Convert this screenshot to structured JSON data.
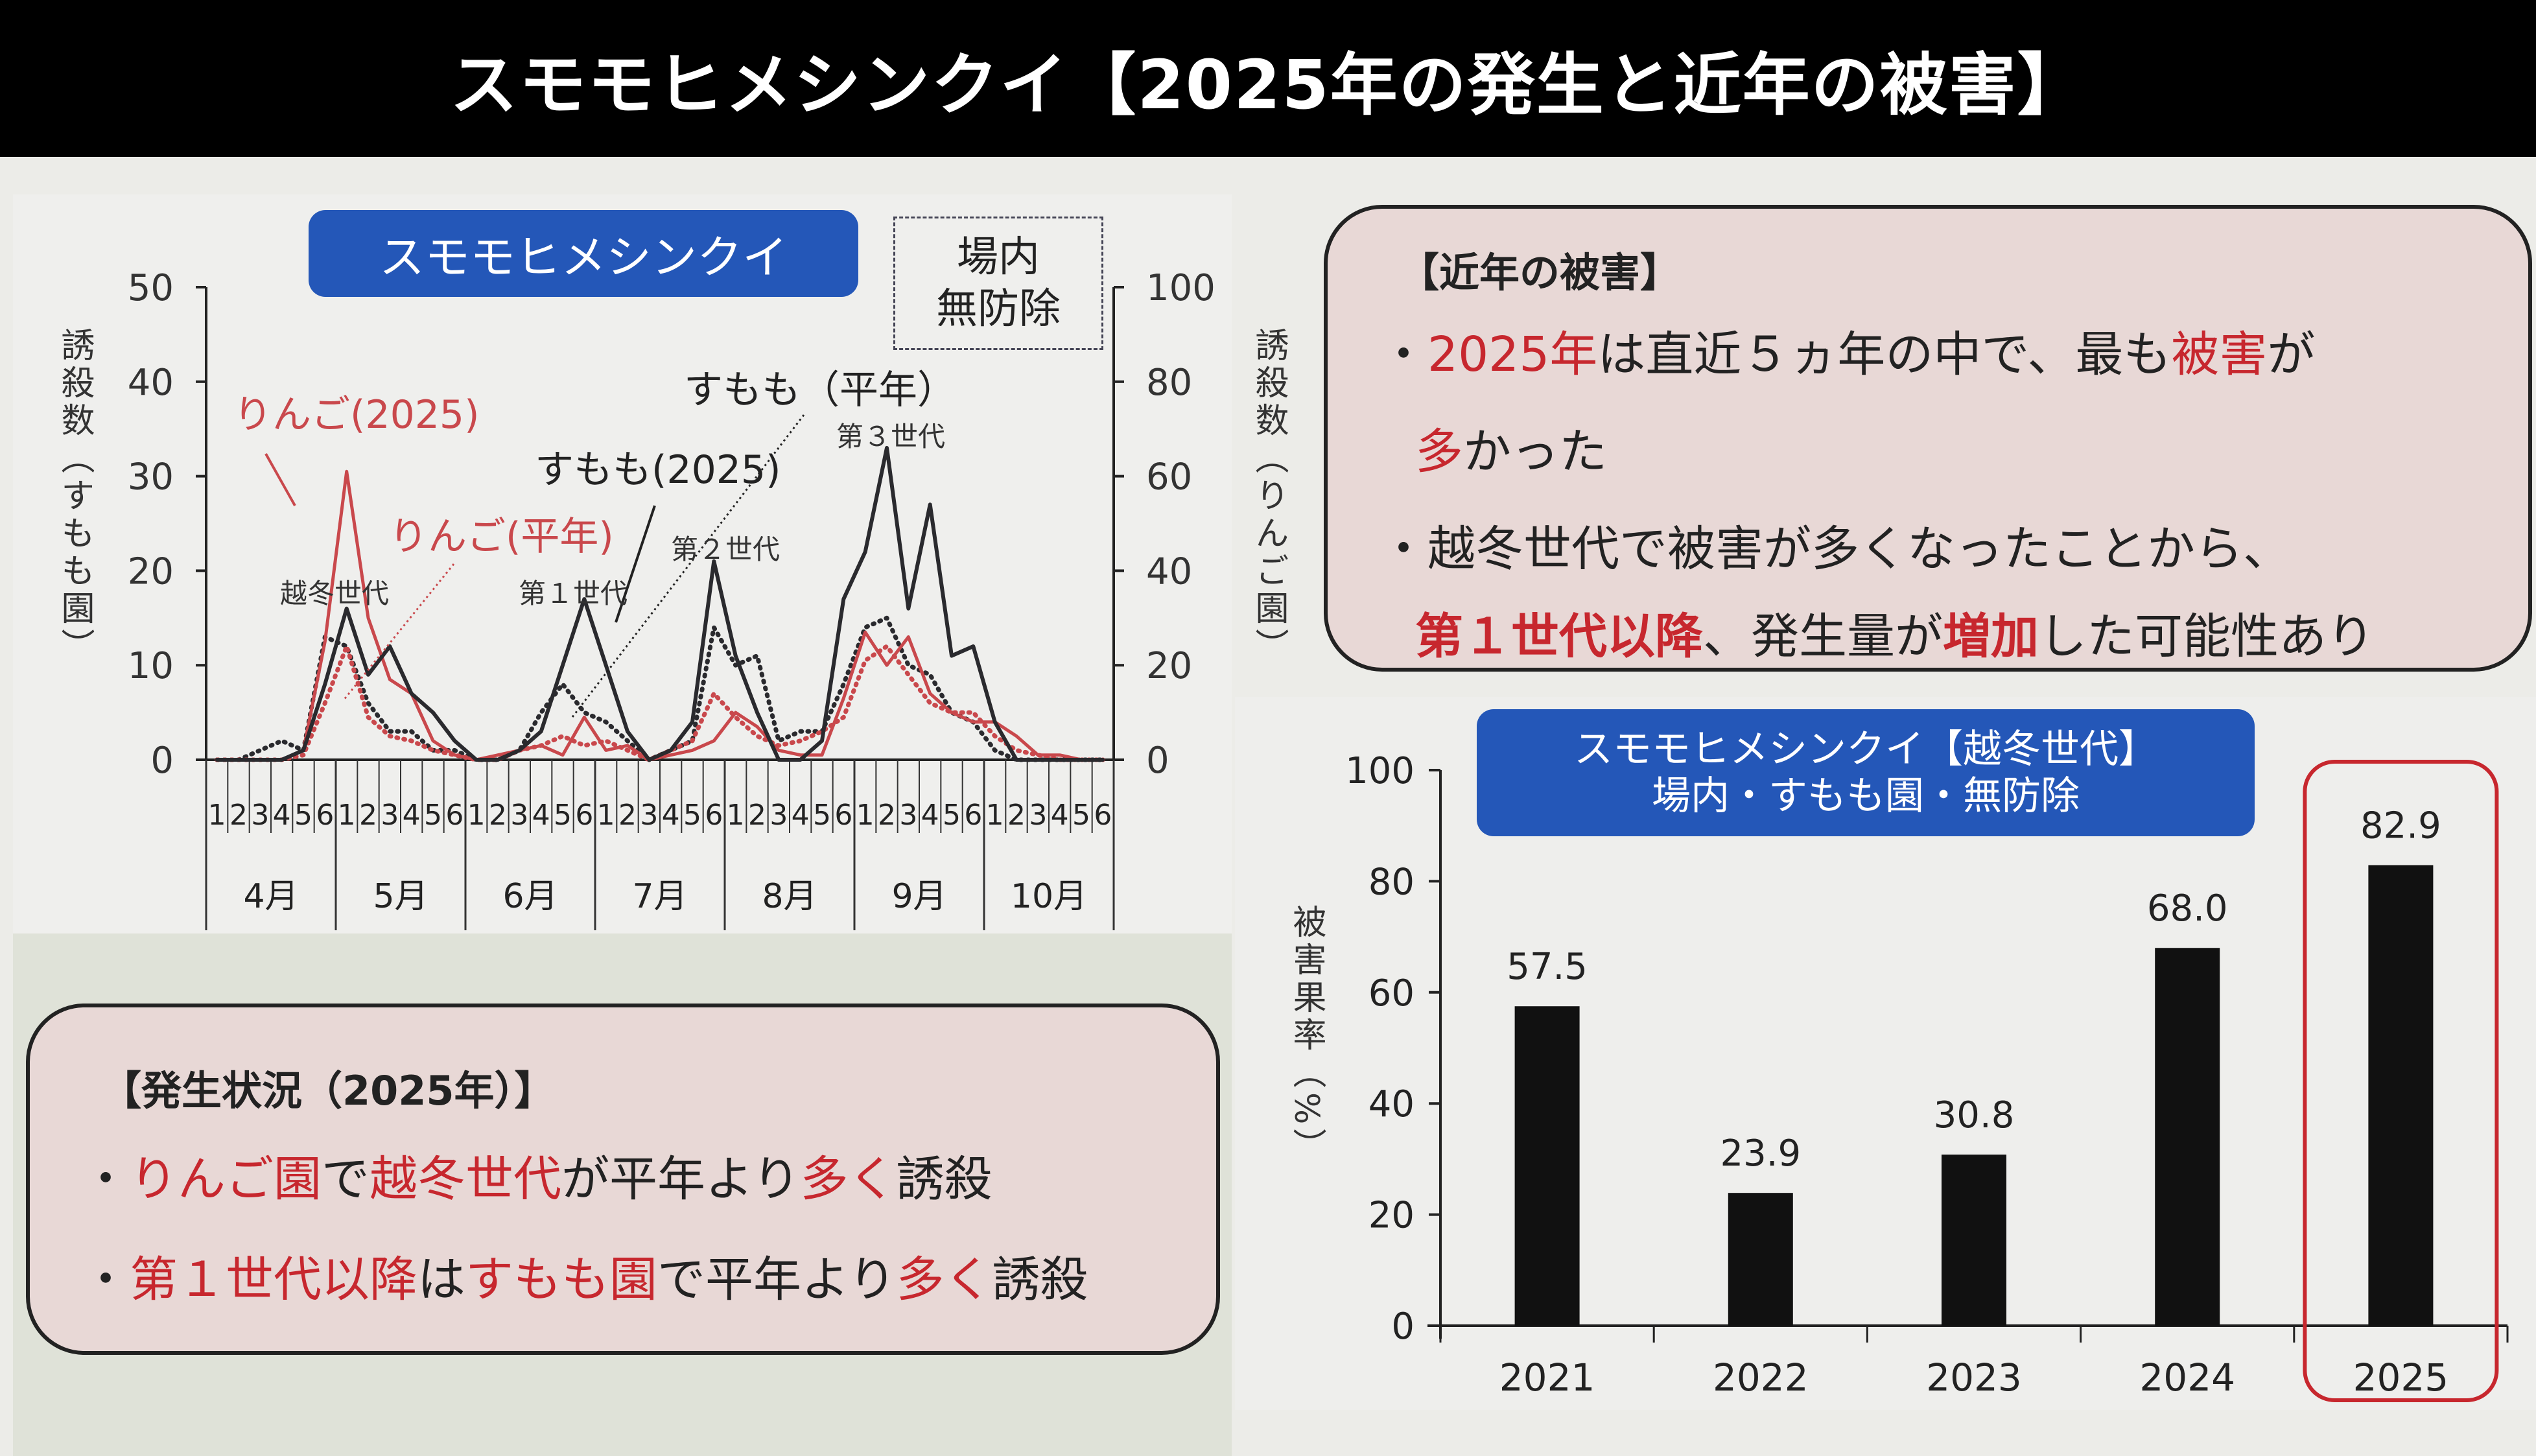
{
  "page": {
    "title": "スモモヒメシンクイ【2025年の発生と近年の被害】"
  },
  "line_chart_panel": {
    "badge": "スモモヒメシンクイ",
    "condition_box": [
      "場内",
      "無防除"
    ],
    "left_axis_label": "誘殺数（すもも園）",
    "right_axis_label": "誘殺数（りんご園）",
    "series_labels": {
      "ringo_2025": "りんご(2025)",
      "ringo_avg": "りんご(平年)",
      "sumomo_2025": "すもも(2025)",
      "sumomo_avg": "すもも（平年）"
    },
    "generation_labels": [
      "越冬世代",
      "第１世代",
      "第２世代",
      "第３世代"
    ]
  },
  "occurrence_box": {
    "heading": "【発生状況（2025年）】",
    "lines": [
      [
        {
          "text": "・",
          "style": "normal"
        },
        {
          "text": "りんご園",
          "style": "red"
        },
        {
          "text": "で",
          "style": "normal"
        },
        {
          "text": "越冬世代",
          "style": "red"
        },
        {
          "text": "が平年より",
          "style": "normal"
        },
        {
          "text": "多く",
          "style": "red"
        },
        {
          "text": "誘殺",
          "style": "normal"
        }
      ],
      [
        {
          "text": "・",
          "style": "normal"
        },
        {
          "text": "第１世代以降",
          "style": "red"
        },
        {
          "text": "は",
          "style": "normal"
        },
        {
          "text": "すもも園",
          "style": "red"
        },
        {
          "text": "で平年より",
          "style": "normal"
        },
        {
          "text": "多く",
          "style": "red"
        },
        {
          "text": "誘殺",
          "style": "normal"
        }
      ]
    ]
  },
  "damage_box": {
    "heading": "【近年の被害】",
    "lines": [
      [
        {
          "text": "・",
          "style": "normal"
        },
        {
          "text": "2025年",
          "style": "red"
        },
        {
          "text": "は直近５ヵ年の中で、最も",
          "style": "normal"
        },
        {
          "text": "被害",
          "style": "red"
        },
        {
          "text": "が",
          "style": "normal"
        }
      ],
      [
        {
          "text": "多",
          "style": "red"
        },
        {
          "text": "かった",
          "style": "normal"
        }
      ],
      [
        {
          "text": "・",
          "style": "normal"
        },
        {
          "text": "越冬世代で被害が多くなったことから、",
          "style": "normal"
        }
      ],
      [
        {
          "text": "第１世代以降",
          "style": "redb"
        },
        {
          "text": "、発生量が",
          "style": "normal"
        },
        {
          "text": "増加",
          "style": "redb"
        },
        {
          "text": "した可能性あり",
          "style": "normal"
        }
      ]
    ]
  },
  "bar_chart_panel": {
    "badge_line1": "スモモヒメシンクイ【越冬世代】",
    "badge_line2": "場内・すもも園・無防除",
    "y_axis_label": "被害果率（%）",
    "highlight_year": "2025"
  },
  "colors": {
    "title_bg": "#000000",
    "badge_blue": "#2457b8",
    "accent_red": "#c7272e",
    "note_bg": "#e8d8d6",
    "bar_black": "#111111"
  },
  "chart_data": [
    {
      "type": "line",
      "title": "スモモヒメシンクイ（場内・無防除）",
      "xlabel": "",
      "ylabel": "誘殺数（すもも園）",
      "ylabel_right": "誘殺数（りんご園）",
      "ylim": [
        0,
        50
      ],
      "ylim_right": [
        0,
        100
      ],
      "yticks": [
        0,
        10,
        20,
        30,
        40,
        50
      ],
      "yticks_right": [
        0,
        20,
        40,
        60,
        80,
        100
      ],
      "months": [
        "4月",
        "5月",
        "6月",
        "7月",
        "8月",
        "9月",
        "10月"
      ],
      "periods_per_month": [
        "1",
        "2",
        "3",
        "4",
        "5",
        "6"
      ],
      "x": [
        "4-1",
        "4-2",
        "4-3",
        "4-4",
        "4-5",
        "4-6",
        "5-1",
        "5-2",
        "5-3",
        "5-4",
        "5-5",
        "5-6",
        "6-1",
        "6-2",
        "6-3",
        "6-4",
        "6-5",
        "6-6",
        "7-1",
        "7-2",
        "7-3",
        "7-4",
        "7-5",
        "7-6",
        "8-1",
        "8-2",
        "8-3",
        "8-4",
        "8-5",
        "8-6",
        "9-1",
        "9-2",
        "9-3",
        "9-4",
        "9-5",
        "9-6",
        "10-1",
        "10-2",
        "10-3",
        "10-4",
        "10-5",
        "10-6"
      ],
      "grid": false,
      "series": [
        {
          "name": "すもも(2025)",
          "axis": "left",
          "style": "solid-black",
          "values": [
            0,
            0,
            0,
            0,
            1,
            8,
            16,
            9,
            12,
            7,
            5,
            2,
            0,
            0,
            1,
            3,
            10,
            17,
            10,
            3,
            0,
            1,
            4,
            21,
            11,
            5,
            0,
            0,
            2,
            17,
            22,
            33,
            16,
            27,
            11,
            12,
            4,
            0,
            0,
            0,
            0,
            0
          ]
        },
        {
          "name": "すもも(平年)",
          "axis": "left",
          "style": "dotted-black",
          "values": [
            0,
            0,
            1,
            2,
            1,
            13,
            12,
            6,
            3,
            3,
            1,
            1,
            0,
            0,
            1,
            5,
            8,
            5,
            4,
            2,
            0,
            1,
            2,
            14,
            10,
            11,
            2,
            3,
            3,
            8,
            14,
            15,
            10,
            9,
            5,
            4,
            1,
            0,
            0,
            0,
            0,
            0
          ]
        },
        {
          "name": "りんご(2025)",
          "axis": "right",
          "style": "solid-red",
          "values": [
            0,
            0,
            0,
            0,
            2,
            25,
            61,
            30,
            17,
            14,
            4,
            1,
            0,
            1,
            2,
            3,
            1,
            9,
            2,
            3,
            0,
            1,
            2,
            4,
            10,
            7,
            2,
            1,
            1,
            13,
            27,
            20,
            26,
            14,
            10,
            8,
            8,
            5,
            1,
            1,
            0,
            0
          ]
        },
        {
          "name": "りんご(平年)",
          "axis": "right",
          "style": "dotted-red",
          "values": [
            0,
            0,
            0,
            0,
            1,
            12,
            24,
            9,
            5,
            4,
            2,
            1,
            0,
            0,
            2,
            3,
            5,
            3,
            4,
            2,
            0,
            2,
            4,
            14,
            9,
            5,
            3,
            4,
            6,
            9,
            21,
            24,
            18,
            12,
            10,
            10,
            5,
            2,
            1,
            0,
            0,
            0
          ]
        }
      ],
      "annotations": [
        "越冬世代",
        "第１世代",
        "第２世代",
        "第３世代"
      ],
      "legend_position": "inline labels"
    },
    {
      "type": "bar",
      "title": "スモモヒメシンクイ【越冬世代】場内・すもも園・無防除",
      "categories": [
        "2021",
        "2022",
        "2023",
        "2024",
        "2025"
      ],
      "values": [
        57.5,
        23.9,
        30.8,
        68.0,
        82.9
      ],
      "value_labels": [
        "57.5",
        "23.9",
        "30.8",
        "68.0",
        "82.9"
      ],
      "xlabel": "",
      "ylabel": "被害果率（%）",
      "ylim": [
        0,
        100
      ],
      "yticks": [
        0,
        20,
        40,
        60,
        80,
        100
      ],
      "grid": false,
      "highlight": "2025"
    }
  ]
}
